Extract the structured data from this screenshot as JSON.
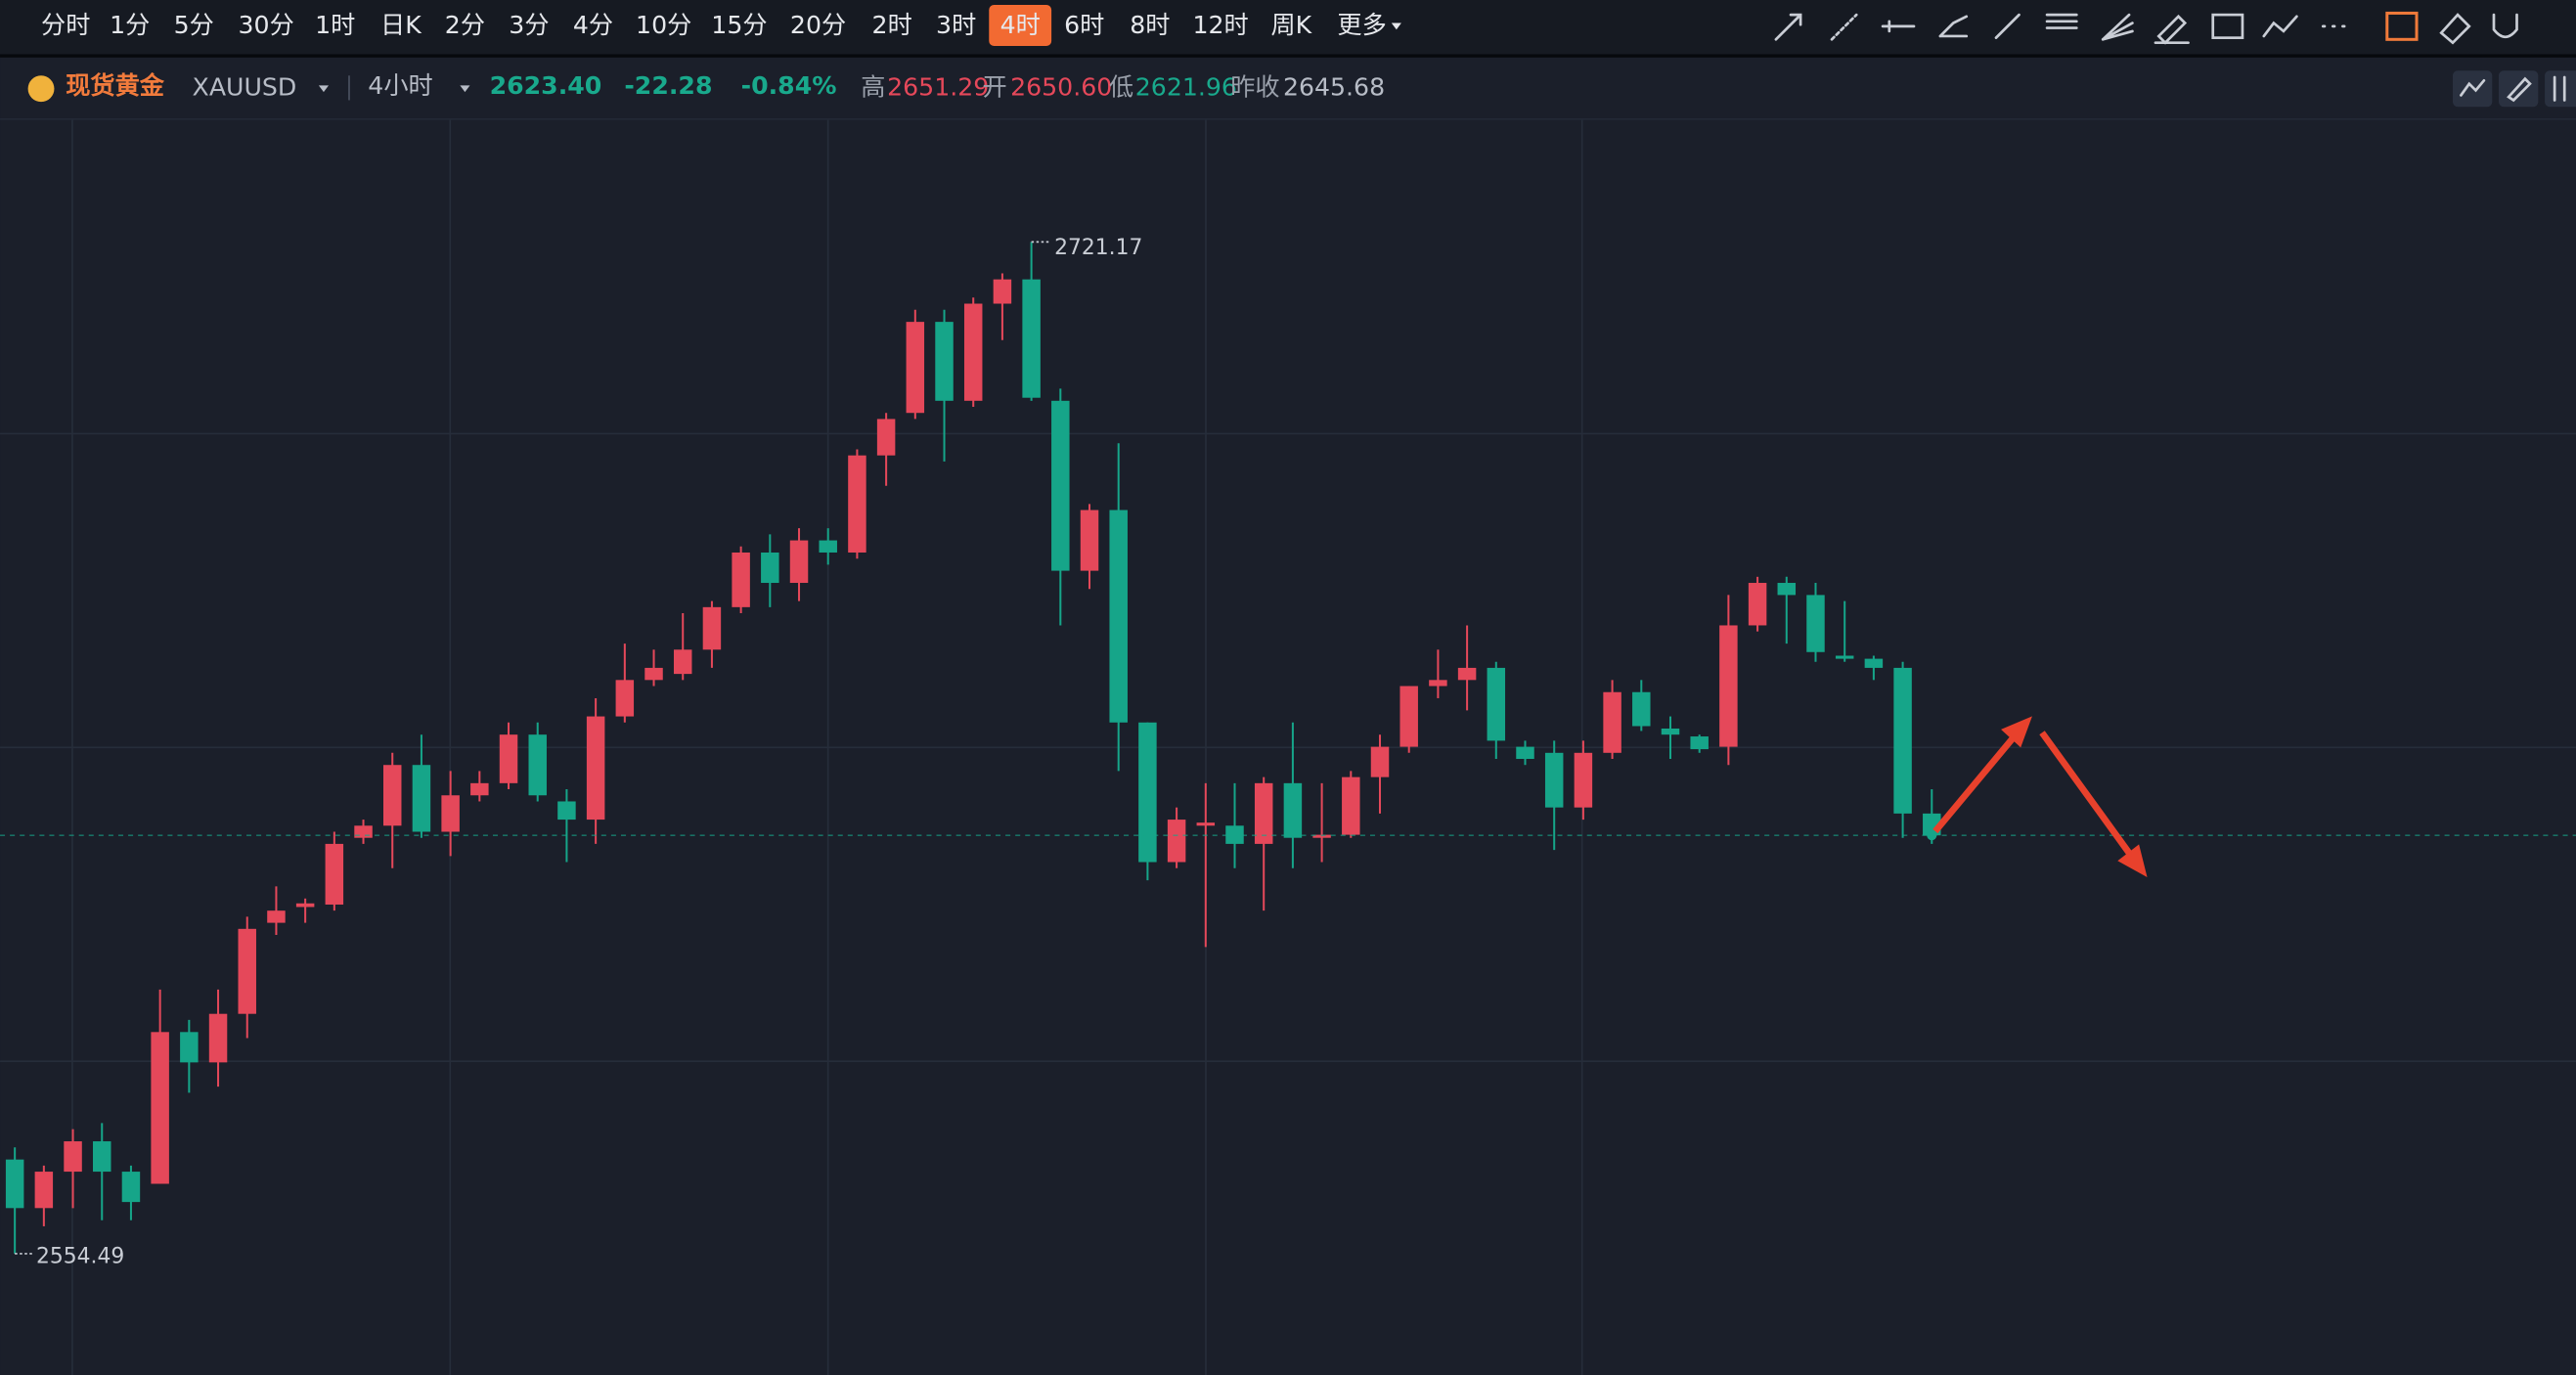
{
  "toolbar": {
    "intervals": [
      "分时",
      "1分",
      "5分",
      "30分",
      "1时",
      "日K",
      "2分",
      "3分",
      "4分",
      "10分",
      "15分",
      "20分",
      "2时",
      "3时",
      "4时",
      "6时",
      "8时",
      "12时",
      "周K",
      "更多"
    ],
    "active": 14
  },
  "quote": {
    "name": "现货黄金",
    "symbol": "XAUUSD",
    "period": "4小时",
    "price": "2623.40",
    "change": "-22.28",
    "change_pct": "-0.84%",
    "high_label": "高",
    "high": "2651.29",
    "open_label": "开",
    "open": "2650.60",
    "low_label": "低",
    "low": "2621.96",
    "prev_close_label": "昨收",
    "prev_close": "2645.68"
  },
  "chart_data": {
    "type": "candlestick",
    "open": [
      2570,
      2562,
      2568,
      2573,
      2568,
      2566,
      2591,
      2586,
      2594,
      2609,
      2611.6,
      2612,
      2623,
      2625,
      2635,
      2624,
      2630,
      2632,
      2640,
      2629,
      2626,
      2643,
      2649,
      2650,
      2654,
      2661,
      2670,
      2665,
      2672,
      2670,
      2686,
      2693,
      2708,
      2695,
      2711,
      2715,
      2695,
      2667,
      2677,
      2642,
      2619,
      2625,
      2625,
      2622,
      2632,
      2623,
      2623.5,
      2633,
      2638,
      2648,
      2649,
      2651,
      2638,
      2637,
      2628,
      2637,
      2647,
      2641,
      2639.7,
      2638,
      2658,
      2665,
      2663,
      2653,
      2652.5,
      2651,
      2627
    ],
    "high": [
      2572,
      2569,
      2575,
      2576,
      2569,
      2598,
      2593,
      2598,
      2610,
      2615,
      2613,
      2624,
      2626,
      2637,
      2640,
      2634,
      2634,
      2642,
      2642,
      2631,
      2646,
      2655,
      2654,
      2660,
      2662,
      2671,
      2673,
      2674,
      2674,
      2687,
      2693,
      2710,
      2710,
      2712,
      2716,
      2721.17,
      2697,
      2678,
      2688,
      2642,
      2628,
      2632,
      2632,
      2633,
      2642,
      2632,
      2634,
      2640,
      2648,
      2654,
      2658,
      2652,
      2639,
      2639,
      2639,
      2649,
      2649,
      2643,
      2640,
      2663,
      2666,
      2666,
      2665,
      2662,
      2653,
      2652,
      2631
    ],
    "low": [
      2554.49,
      2559,
      2562,
      2560,
      2560,
      2566,
      2581,
      2582,
      2590,
      2607,
      2609,
      2611,
      2622,
      2618,
      2623,
      2620,
      2629,
      2631,
      2629,
      2619,
      2622,
      2642,
      2648,
      2649,
      2651,
      2660,
      2661,
      2662,
      2668,
      2669,
      2681,
      2692,
      2685,
      2694,
      2705,
      2695,
      2658,
      2664,
      2634,
      2616,
      2618,
      2605,
      2618,
      2611,
      2618,
      2619,
      2623,
      2627,
      2637,
      2646,
      2644,
      2636,
      2635,
      2621,
      2626,
      2636,
      2640.6,
      2636,
      2637,
      2635,
      2657,
      2655,
      2652,
      2652,
      2649,
      2623,
      2622
    ],
    "close": [
      2562,
      2568,
      2573,
      2568,
      2563,
      2591,
      2586,
      2594,
      2608,
      2611,
      2612.2,
      2622,
      2625,
      2635,
      2624,
      2630,
      2632,
      2640,
      2630,
      2626,
      2643,
      2649,
      2651,
      2654,
      2661,
      2670,
      2665,
      2672,
      2670,
      2686,
      2692,
      2708,
      2695,
      2711,
      2715,
      2695.5,
      2667,
      2677,
      2642,
      2619,
      2626,
      2625.5,
      2622,
      2632,
      2623,
      2623.5,
      2633,
      2638,
      2648,
      2649,
      2651,
      2639,
      2636,
      2628,
      2637,
      2647,
      2641.4,
      2640,
      2637.6,
      2658,
      2665,
      2663,
      2653.6,
      2652.5,
      2651,
      2627,
      2623.4
    ],
    "up_color": "#e5485a",
    "down_color": "#16a589",
    "ylim": [
      2534.5,
      2741
    ]
  }
}
